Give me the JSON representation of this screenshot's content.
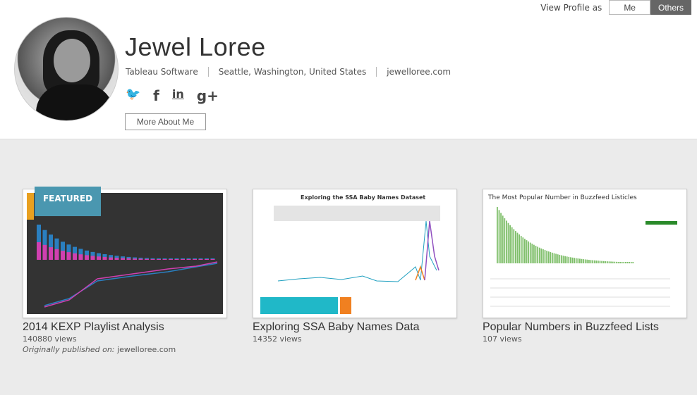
{
  "view_profile": {
    "label": "View Profile as",
    "options": [
      "Me",
      "Others"
    ],
    "selected": "Others"
  },
  "profile": {
    "name": "Jewel Loree",
    "organization": "Tableau Software",
    "location": "Seattle, Washington, United States",
    "website": "jewelloree.com",
    "more_button": "More About Me",
    "social": [
      {
        "icon": "twitter-icon",
        "glyph": "🐦"
      },
      {
        "icon": "facebook-icon",
        "glyph": "f"
      },
      {
        "icon": "linkedin-icon",
        "glyph": "in"
      },
      {
        "icon": "google-plus-icon",
        "glyph": "g+"
      }
    ]
  },
  "featured_label": "FEATURED",
  "workbooks": [
    {
      "title": "2014 KEXP Playlist Analysis",
      "views": "140880 views",
      "origin_label": "Originally published on:",
      "origin": "jewelloree.com"
    },
    {
      "title": "Exploring SSA Baby Names Data",
      "views": "14352 views",
      "thumb_title": "Exploring the SSA Baby Names Dataset"
    },
    {
      "title": "Popular Numbers in Buzzfeed Lists",
      "views": "107 views",
      "thumb_title": "The Most Popular Number in Buzzfeed Listicles"
    }
  ],
  "colors": {
    "featured": "#4a97b0",
    "toggle_active": "#666666"
  }
}
